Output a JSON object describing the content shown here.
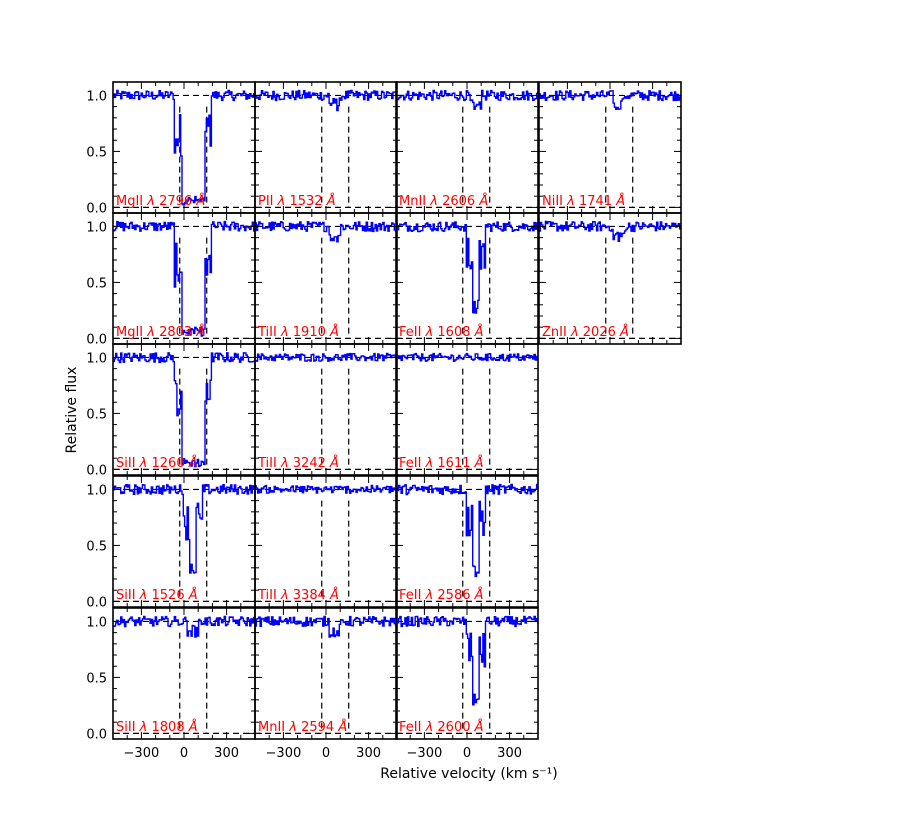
{
  "chart_data": {
    "type": "line",
    "xlabel": "Relative velocity (km s⁻¹)",
    "ylabel": "Relative flux",
    "xlim": [
      -500,
      500
    ],
    "ylim": [
      -0.05,
      1.12
    ],
    "x_ticks": [
      -300,
      0,
      300
    ],
    "x_tick_labels": [
      "−300",
      "0",
      "300"
    ],
    "y_ticks": [
      0.0,
      0.5,
      1.0
    ],
    "y_tick_labels": [
      "0.0",
      "0.5",
      "1.0"
    ],
    "velocity_window": [
      -30,
      160
    ],
    "continuum": 1.0,
    "zero_level": 0.0,
    "colors": {
      "spectrum": "#0000ff",
      "label": "#ff0000",
      "guides": "#000000"
    },
    "panels": [
      {
        "row": 0,
        "col": 0,
        "ion": "MgII",
        "wavelength": "2796",
        "profile": "saturated"
      },
      {
        "row": 0,
        "col": 1,
        "ion": "PII",
        "wavelength": "1532",
        "profile": "weak"
      },
      {
        "row": 0,
        "col": 2,
        "ion": "MnII",
        "wavelength": "2606",
        "profile": "weak"
      },
      {
        "row": 0,
        "col": 3,
        "ion": "NiII",
        "wavelength": "1741",
        "profile": "weak"
      },
      {
        "row": 1,
        "col": 0,
        "ion": "MgII",
        "wavelength": "2803",
        "profile": "saturated"
      },
      {
        "row": 1,
        "col": 1,
        "ion": "TiII",
        "wavelength": "1910",
        "profile": "weak"
      },
      {
        "row": 1,
        "col": 2,
        "ion": "FeII",
        "wavelength": "1608",
        "profile": "strong"
      },
      {
        "row": 1,
        "col": 3,
        "ion": "ZnII",
        "wavelength": "2026",
        "profile": "weak"
      },
      {
        "row": 2,
        "col": 0,
        "ion": "SiII",
        "wavelength": "1260",
        "profile": "saturated"
      },
      {
        "row": 2,
        "col": 1,
        "ion": "TiII",
        "wavelength": "3242",
        "profile": "flat"
      },
      {
        "row": 2,
        "col": 2,
        "ion": "FeII",
        "wavelength": "1611",
        "profile": "flat"
      },
      {
        "row": 3,
        "col": 0,
        "ion": "SiII",
        "wavelength": "1526",
        "profile": "strong"
      },
      {
        "row": 3,
        "col": 1,
        "ion": "TiII",
        "wavelength": "3384",
        "profile": "flat"
      },
      {
        "row": 3,
        "col": 2,
        "ion": "FeII",
        "wavelength": "2586",
        "profile": "strong"
      },
      {
        "row": 4,
        "col": 0,
        "ion": "SiII",
        "wavelength": "1808",
        "profile": "weak"
      },
      {
        "row": 4,
        "col": 1,
        "ion": "MnII",
        "wavelength": "2594",
        "profile": "weak"
      },
      {
        "row": 4,
        "col": 2,
        "ion": "FeII",
        "wavelength": "2600",
        "profile": "strong"
      }
    ]
  }
}
